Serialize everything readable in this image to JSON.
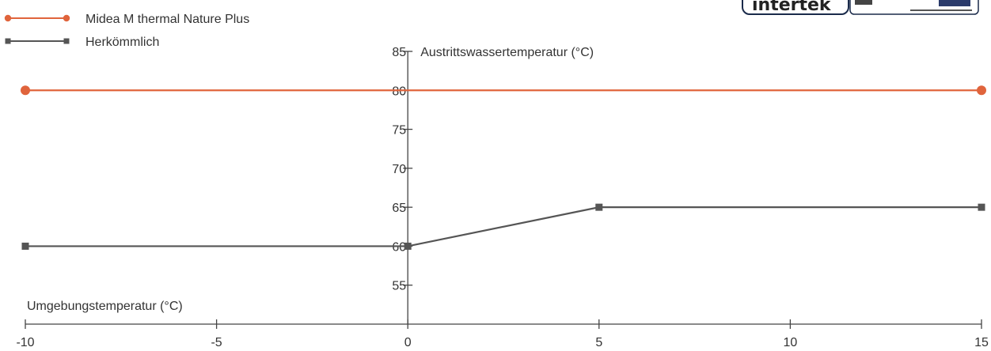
{
  "logo": {
    "brand": "intertek"
  },
  "chart_data": {
    "type": "line",
    "xlabel": "Umgebungstemperatur (°C)",
    "ylabel": "Austrittswassertemperatur (°C)",
    "x_ticks": [
      -10,
      -5,
      0,
      5,
      10,
      15
    ],
    "y_ticks": [
      55,
      60,
      65,
      70,
      75,
      80,
      85
    ],
    "xlim": [
      -10,
      15
    ],
    "ylim": [
      50,
      85
    ],
    "grid": false,
    "legend_position": "top-left",
    "series": [
      {
        "name": "Midea M thermal Nature Plus",
        "color": "#e0643c",
        "marker": "circle",
        "x": [
          -10,
          15
        ],
        "y": [
          80,
          80
        ]
      },
      {
        "name": "Herkömmlich",
        "color": "#555555",
        "marker": "square",
        "x": [
          -10,
          0,
          5,
          15
        ],
        "y": [
          60,
          60,
          65,
          65
        ]
      }
    ]
  }
}
